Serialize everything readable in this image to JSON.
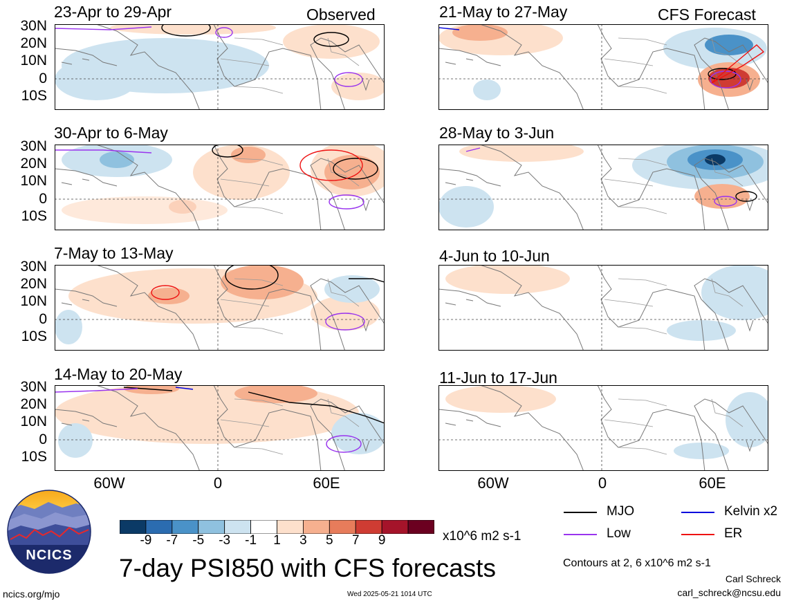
{
  "columns": {
    "left_title": "Observed",
    "right_title": "CFS Forecast"
  },
  "panels": [
    {
      "title": "23-Apr to 29-Apr"
    },
    {
      "title": "30-Apr to 6-May"
    },
    {
      "title": "7-May to 13-May"
    },
    {
      "title": "14-May to 20-May"
    },
    {
      "title": "21-May to 27-May"
    },
    {
      "title": "28-May to 3-Jun"
    },
    {
      "title": "4-Jun to 10-Jun"
    },
    {
      "title": "11-Jun to 17-Jun"
    }
  ],
  "lat_labels": [
    "30N",
    "20N",
    "10N",
    "0",
    "10S"
  ],
  "lon_labels": [
    "60W",
    "0",
    "60E"
  ],
  "colorbar": {
    "colors": [
      "#0b3a66",
      "#2b6cb0",
      "#4a92c8",
      "#8fc1df",
      "#cde3f0",
      "#ffffff",
      "#fde0cc",
      "#f6b08f",
      "#e77c5b",
      "#cf3c33",
      "#a5142a",
      "#6b0020"
    ],
    "labels": [
      "-9",
      "-7",
      "-5",
      "-3",
      "-1",
      "1",
      "3",
      "5",
      "7",
      "9"
    ],
    "units": "x10^6 m2 s-1"
  },
  "legend": [
    {
      "label": "MJO",
      "color": "#000000"
    },
    {
      "label": "Kelvin x2",
      "color": "#0000dd"
    },
    {
      "label": "Low",
      "color": "#9933ee"
    },
    {
      "label": "ER",
      "color": "#ee1111"
    }
  ],
  "footer": {
    "main_title": "7-day PSI850 with CFS forecasts",
    "contours_note": "Contours at 2, 6 x10^6 m2 s-1",
    "author": "Carl Schreck",
    "email": "carl_schreck@ncsu.edu",
    "site": "ncics.org/mjo",
    "timestamp": "Wed 2025-05-21 1014 UTC",
    "logo_text": "NCICS"
  }
}
